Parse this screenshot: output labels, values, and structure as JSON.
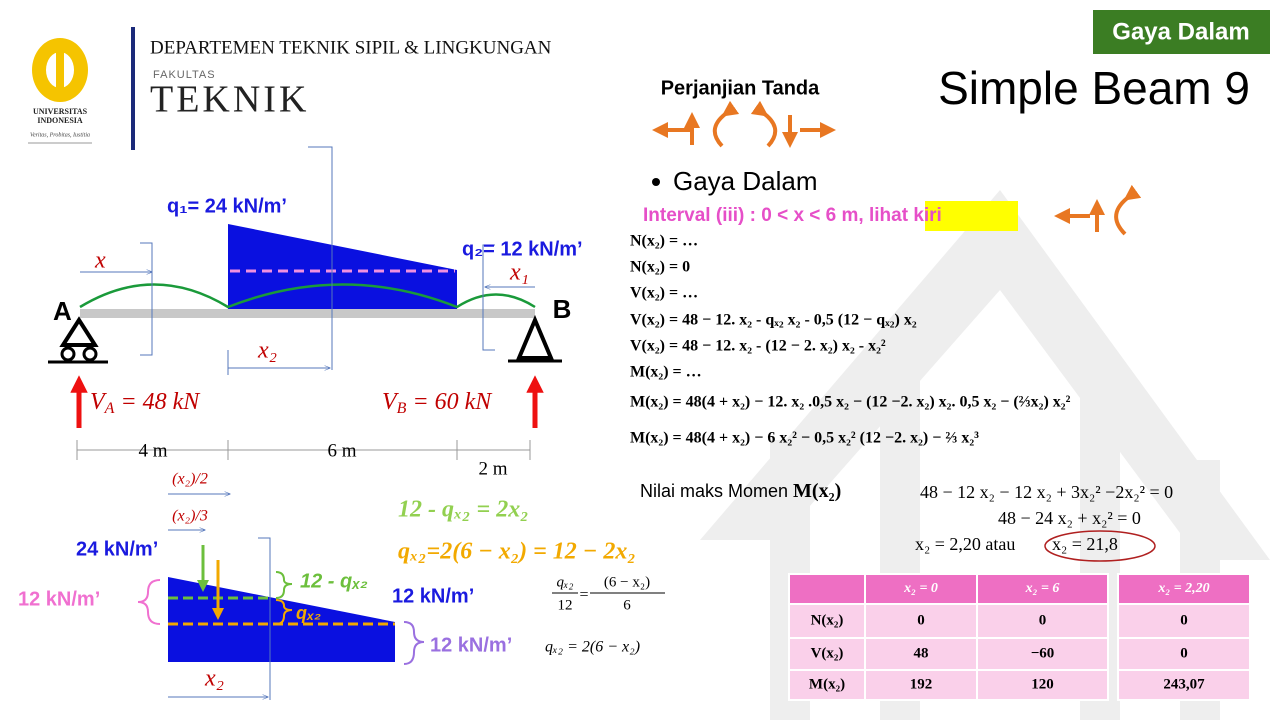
{
  "header": {
    "department": "DEPARTEMEN TEKNIK SIPIL & LINGKUNGAN",
    "faculty_label": "FAKULTAS",
    "faculty": "TEKNIK",
    "university_line1": "UNIVERSITAS",
    "university_line2": "INDONESIA",
    "motto": "Veritas, Probitas, Iustitia"
  },
  "badge": "Gaya Dalam",
  "title": "Simple Beam 9",
  "sign_convention": "Perjanjian Tanda",
  "bullet": "Gaya Dalam",
  "interval": {
    "text": "Interval (iii) : 0 < x < 6 m, ",
    "highlight": "lihat kiri"
  },
  "equations": [
    "N(x₂) = …",
    "N(x₂) = 0",
    "V(x₂) = …",
    "V(x₂) = 48 − 12. x₂ - qₓ₂ x₂ - 0,5 (12 − qₓ₂) x₂",
    "V(x₂) = 48 − 12. x₂ - (12 − 2. x₂) x₂ - x₂²",
    "M(x₂) = …",
    "M(x₂) = 48(4 + x₂) − 12. x₂ .0,5 x₂ − (12 −2. x₂) x₂. 0,5 x₂ − (⅔x₂) x₂²",
    "M(x₂) = 48(4 + x₂) − 6 x₂² − 0,5 x₂² (12 −2. x₂) − ⅔ x₂³"
  ],
  "beam": {
    "q1": "q₁= 24 kN/m’",
    "q2": "q₂= 12 kN/m’",
    "x": "x",
    "x1": "x₁",
    "x2": "x₂",
    "support_a": "A",
    "support_b": "B",
    "reaction_a": {
      "symbol": "V",
      "subscript": "A",
      "value": " = 48 kN"
    },
    "reaction_b": {
      "symbol": "V",
      "subscript": "B",
      "value": " = 60 kN"
    },
    "dimensions": [
      "4 m",
      "6 m",
      "2 m"
    ]
  },
  "load_detail": {
    "half": "(x₂)/2",
    "third": "(x₂)/3",
    "q_left": "24 kN/m’",
    "q_mid_left": "12 kN/m’",
    "diff": "12 - qₓ₂",
    "qx": "qₓ₂",
    "q_right": "12 kN/m’",
    "q_bottom": "12 kN/m’",
    "x2": "x₂"
  },
  "derivation": {
    "eq1": "12 - qₓ₂ = 2x₂",
    "eq2": "qₓ₂=2(6 − x₂) = 12 − 2x₂",
    "ratio_left_num": "qₓ₂",
    "ratio_left_den": "12",
    "ratio_equals": "=",
    "ratio_right_num": "(6 − x₂)",
    "ratio_right_den": "6",
    "result": "qₓ₂ = 2(6 − x₂)"
  },
  "max_moment": {
    "label": "Nilai maks Momen ",
    "symbol": "M(x₂)",
    "eq1": "48 − 12 x₂ − 12 x₂ + 3x₂² −2x₂² = 0",
    "eq2": "48 − 24 x₂ + x₂² = 0",
    "roots": "x₂ = 2,20 atau",
    "root_rejected": "x₂ = 21,8"
  },
  "table": {
    "headers": [
      "x₂ = 0",
      "x₂ = 6",
      "x₂ = 2,20"
    ],
    "rows": [
      {
        "label": "N(x₂)",
        "cells": [
          "0",
          "0",
          "0"
        ]
      },
      {
        "label": "V(x₂)",
        "cells": [
          "48",
          "−60",
          "0"
        ]
      },
      {
        "label": "M(x₂)",
        "cells": [
          "192",
          "120",
          "243,07"
        ]
      }
    ]
  }
}
